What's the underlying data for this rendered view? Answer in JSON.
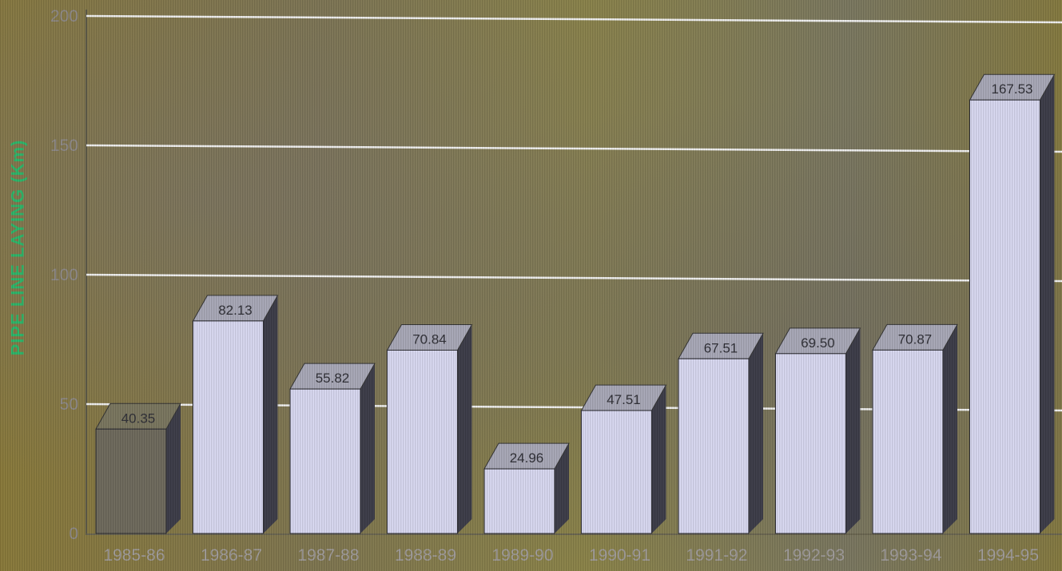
{
  "chart_data": {
    "type": "bar",
    "ylabel": "PIPE LINE LAYING (Km)",
    "xlabel": "",
    "title": "",
    "categories": [
      "1985-86",
      "1986-87",
      "1987-88",
      "1988-89",
      "1989-90",
      "1990-91",
      "1991-92",
      "1992-93",
      "1993-94",
      "1994-95"
    ],
    "values": [
      40.35,
      82.13,
      55.82,
      70.84,
      24.96,
      47.51,
      67.51,
      69.5,
      70.87,
      167.53
    ],
    "value_labels": [
      "40.35",
      "82.13",
      "55.82",
      "70.84",
      "24.96",
      "47.51",
      "67.51",
      "69.50",
      "70.87",
      "167.53"
    ],
    "ylim": [
      0,
      200
    ],
    "yticks": [
      "0",
      "50",
      "100",
      "150",
      "200"
    ],
    "grid": true,
    "legend": "none",
    "colors": {
      "bar_face": "#d9d9f2",
      "first_bar_face": "#6e6a5c",
      "bar_side": "#3c3c48",
      "bar_top": "#a9a9b8",
      "gridline": "#f2f2f2",
      "ylabel": "#2bb86a"
    }
  }
}
